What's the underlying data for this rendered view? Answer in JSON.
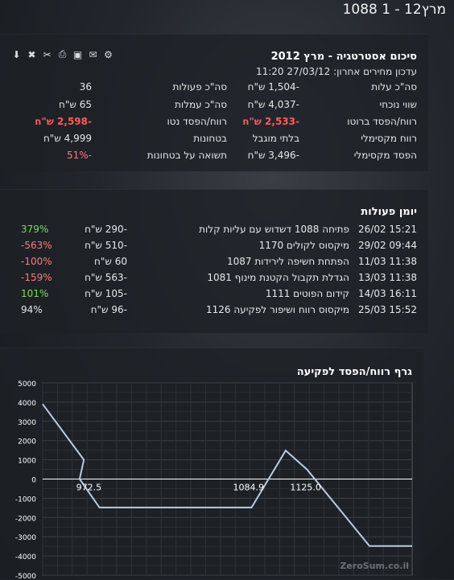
{
  "page_title": "מרץ12 - 1 1088",
  "summary": {
    "title": "סיכום אסטרטגיה - מרץ 2012",
    "updated": "עדכון מחירים אחרון: 27/03/12 11:20",
    "toolbar": [
      "download-icon",
      "delete-icon",
      "tools-icon",
      "print-icon",
      "export-icon",
      "email-icon",
      "share-icon"
    ],
    "rows": [
      {
        "l1": "סה\"כ עלות",
        "v1": "-1,504 ש\"ח",
        "l2": "סה\"כ פעולות",
        "v2": "36"
      },
      {
        "l1": "שווי נוכחי",
        "v1": "-4,037 ש\"ח",
        "l2": "סה\"כ עמלות",
        "v2": "65 ש\"ח"
      },
      {
        "l1": "רווח/הפסד ברוטו",
        "v1": "-2,533 ש\"ח",
        "l2": "רווח/הפסד נטו",
        "v2": "-2,598 ש\"ח"
      },
      {
        "l1": "רווח מקסימלי",
        "v1": "בלתי מוגבל",
        "l2": "בטחונות",
        "v2": "4,999 ש\"ח"
      },
      {
        "l1": "הפסד מקסימלי",
        "v1": "-3,496 ש\"ח",
        "l2": "תשואה על בטחונות",
        "v2": "-51%"
      }
    ]
  },
  "journal": {
    "title": "יומן פעולות",
    "rows": [
      {
        "date": "26/02 15:21",
        "desc": "פתיחה 1088 דשדוש עם עליות קלות",
        "amount": "-290 ש\"ח",
        "pct": "379%",
        "pct_color": "#7ddc5a"
      },
      {
        "date": "29/02 09:44",
        "desc": "מיקסוס לקולים 1170",
        "amount": "-510 ש\"ח",
        "pct": "-563%",
        "pct_color": "#ff7a7a"
      },
      {
        "date": "11/03 11:38",
        "desc": "הפתחת חשיפה לירידות 1087",
        "amount": "60 ש\"ח",
        "pct": "-100%",
        "pct_color": "#ff7a7a"
      },
      {
        "date": "13/03 11:38",
        "desc": "הגדלת תקבול הקטנת מינוף 1081",
        "amount": "-563 ש\"ח",
        "pct": "-159%",
        "pct_color": "#ff7a7a"
      },
      {
        "date": "14/03 16:11",
        "desc": "קידום הפוטים 1111",
        "amount": "-105 ש\"ח",
        "pct": "101%",
        "pct_color": "#7ddc5a"
      },
      {
        "date": "25/03 15:52",
        "desc": "מיקסוס רווח ושיפור לפקיעה 1126",
        "amount": "-96 ש\"ח",
        "pct": "94%",
        "pct_color": "#e6e6e6"
      }
    ]
  },
  "chart_data": {
    "type": "line",
    "title": "גרף רווח/הפסד לפקיעה",
    "y_ticks": [
      5000,
      4000,
      3000,
      2000,
      1000,
      0,
      -1000,
      -2000,
      -3000,
      -4000,
      -5000
    ],
    "ylim": [
      -5000,
      5000
    ],
    "xlim": [
      940,
      1200
    ],
    "grid": true,
    "annotations": [
      {
        "text": "972.5",
        "x": 972.5
      },
      {
        "text": "1084.9",
        "x": 1084.9
      },
      {
        "text": "1125.0",
        "x": 1125.0
      }
    ],
    "series": [
      {
        "name": "",
        "color": "#b9cbe0",
        "x": [
          940,
          969,
          966,
          980,
          1081,
          1087,
          1111,
          1126,
          1126,
          1170,
          1200
        ],
        "y": [
          3900,
          1000,
          0,
          -1480,
          -1480,
          -1480,
          1480,
          500,
          500,
          -3480,
          -3480
        ]
      }
    ],
    "watermark": "ZeroSum.co.il"
  }
}
